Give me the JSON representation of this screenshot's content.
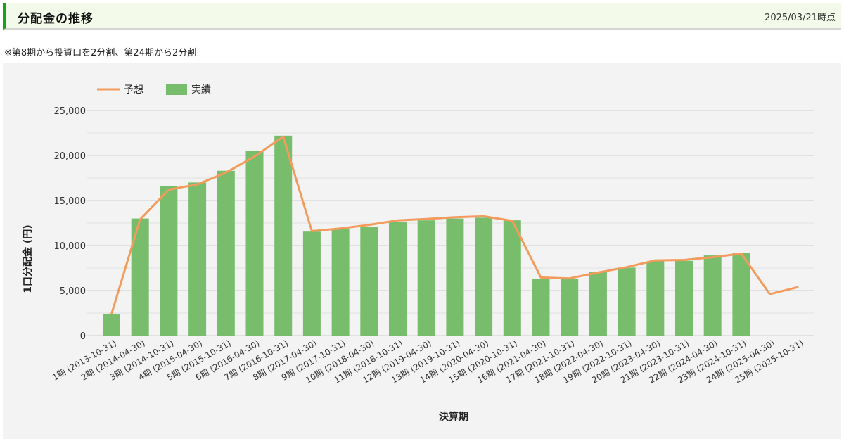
{
  "header": {
    "title": "分配金の推移",
    "date": "2025/03/21時点"
  },
  "note": "※第8期から投資口を2分割、第24期から2分割",
  "colors": {
    "actual": "#78bd6c",
    "forecast": "#f39b5c",
    "accent": "#1aa11a"
  },
  "chart_data": {
    "type": "bar",
    "ylabel": "1口分配金 (円)",
    "xlabel": "決算期",
    "ylim": [
      0,
      25000
    ],
    "yticks": [
      "25,000",
      "20,000",
      "15,000",
      "10,000",
      "5,000",
      "0"
    ],
    "ytick_values": [
      25000,
      20000,
      15000,
      10000,
      5000,
      0
    ],
    "legend": [
      "予想",
      "実績"
    ],
    "categories": [
      "1期 (2013-10-31)",
      "2期 (2014-04-30)",
      "3期 (2014-10-31)",
      "4期 (2015-04-30)",
      "5期 (2015-10-31)",
      "6期 (2016-04-30)",
      "7期 (2016-10-31)",
      "8期 (2017-04-30)",
      "9期 (2017-10-31)",
      "10期 (2018-04-30)",
      "11期 (2018-10-31)",
      "12期 (2019-04-30)",
      "13期 (2019-10-31)",
      "14期 (2020-04-30)",
      "15期 (2020-10-31)",
      "16期 (2021-04-30)",
      "17期 (2021-10-31)",
      "18期 (2022-04-30)",
      "19期 (2022-10-31)",
      "20期 (2023-04-30)",
      "21期 (2023-10-31)",
      "22期 (2024-04-30)",
      "23期 (2024-10-31)",
      "24期 (2025-04-30)",
      "25期 (2025-10-31)"
    ],
    "series": [
      {
        "name": "実績",
        "type": "bar",
        "values": [
          2350,
          13000,
          16600,
          17000,
          18300,
          20500,
          22200,
          11550,
          11800,
          12100,
          12650,
          12800,
          13000,
          13100,
          12800,
          6300,
          6300,
          7100,
          7550,
          8250,
          8300,
          8900,
          9150,
          null,
          null
        ]
      },
      {
        "name": "予想",
        "type": "line",
        "values": [
          2400,
          12900,
          16200,
          16800,
          18100,
          19900,
          22100,
          11600,
          11900,
          12300,
          12800,
          12950,
          13150,
          13250,
          12750,
          6450,
          6350,
          7000,
          7600,
          8350,
          8400,
          8700,
          9100,
          4600,
          5400
        ]
      }
    ]
  }
}
